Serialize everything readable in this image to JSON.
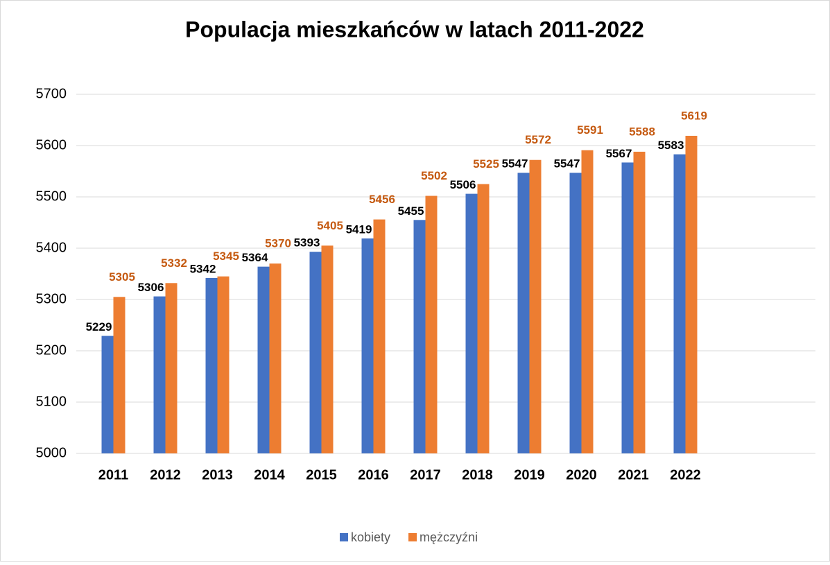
{
  "chart_data": {
    "type": "bar",
    "title": "Populacja  mieszkańców w latach 2011-2022",
    "categories": [
      "2011",
      "2012",
      "2013",
      "2014",
      "2015",
      "2016",
      "2017",
      "2018",
      "2019",
      "2020",
      "2021",
      "2022",
      null,
      null
    ],
    "series": [
      {
        "name": "kobiety",
        "color": "#4472c4",
        "values": [
          5229,
          5306,
          5342,
          5364,
          5393,
          5419,
          5455,
          5506,
          5547,
          5547,
          5567,
          5583,
          null,
          null
        ]
      },
      {
        "name": "mężczyźni",
        "color": "#ed7d31",
        "values": [
          5305,
          5332,
          5345,
          5370,
          5405,
          5456,
          5502,
          5525,
          5572,
          5591,
          5588,
          5619,
          null,
          null
        ]
      }
    ],
    "ylim": [
      5000,
      5700
    ],
    "yticks": [
      5000,
      5100,
      5200,
      5300,
      5400,
      5500,
      5600,
      5700
    ],
    "grid": true,
    "legend": "bottom"
  }
}
